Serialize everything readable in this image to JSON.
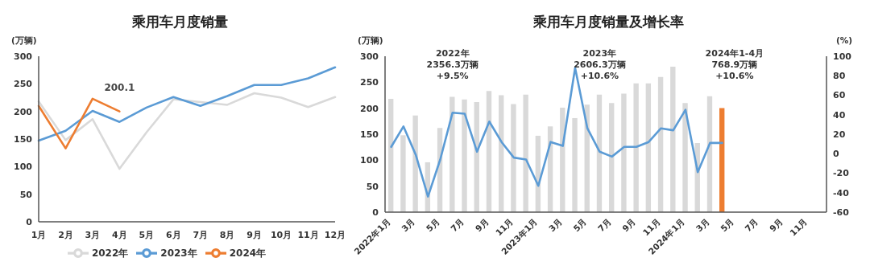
{
  "chart_data": [
    {
      "type": "line",
      "title": "乘用车月度销量",
      "ylabel": "(万辆)",
      "categories": [
        "1月",
        "2月",
        "3月",
        "4月",
        "5月",
        "6月",
        "7月",
        "8月",
        "9月",
        "10月",
        "11月",
        "12月"
      ],
      "series": [
        {
          "name": "2022年",
          "color": "#d9d9d9",
          "values": [
            218,
            148,
            186,
            96,
            162,
            222,
            217,
            212,
            233,
            225,
            208,
            226
          ]
        },
        {
          "name": "2023年",
          "color": "#5b9bd5",
          "values": [
            147,
            165,
            201,
            181,
            207,
            226,
            210,
            228,
            248,
            248,
            260,
            280
          ]
        },
        {
          "name": "2024年",
          "color": "#ed7d31",
          "values": [
            210,
            133,
            223,
            200.1,
            null,
            null,
            null,
            null,
            null,
            null,
            null,
            null
          ]
        }
      ],
      "ylim": [
        0,
        300
      ],
      "yticks": [
        0,
        50,
        100,
        150,
        200,
        250,
        300
      ],
      "legend": "bottom",
      "annotations": [
        {
          "text": "200.1",
          "x": "4月",
          "y": 200.1
        }
      ]
    },
    {
      "type": "bar",
      "title": "乘用车月度销量及增长率",
      "ylabel": "(万辆)",
      "y2label": "(%)",
      "categories": [
        "2022年1月",
        null,
        "3月",
        null,
        "5月",
        null,
        "7月",
        null,
        "9月",
        null,
        "11月",
        null,
        "2023年1月",
        null,
        "3月",
        null,
        "5月",
        null,
        "7月",
        null,
        "9月",
        null,
        "11月",
        null,
        "2024年1月",
        null,
        "3月",
        null,
        "5月",
        null,
        "7月",
        null,
        "9月",
        null,
        "11月",
        null
      ],
      "series": [
        {
          "colors": [
            "#d9d9d9",
            "#d9d9d9",
            "#d9d9d9",
            "#d9d9d9",
            "#d9d9d9",
            "#d9d9d9",
            "#d9d9d9",
            "#d9d9d9",
            "#d9d9d9",
            "#d9d9d9",
            "#d9d9d9",
            "#d9d9d9",
            "#d9d9d9",
            "#d9d9d9",
            "#d9d9d9",
            "#d9d9d9",
            "#d9d9d9",
            "#d9d9d9",
            "#d9d9d9",
            "#d9d9d9",
            "#d9d9d9",
            "#d9d9d9",
            "#d9d9d9",
            "#d9d9d9",
            "#d9d9d9",
            "#d9d9d9",
            "#d9d9d9",
            "#ed7d31",
            "#d9d9d9",
            "#d9d9d9",
            "#d9d9d9",
            "#d9d9d9",
            "#d9d9d9",
            "#d9d9d9",
            "#d9d9d9",
            "#d9d9d9"
          ],
          "values": [
            218,
            148,
            186,
            96,
            162,
            222,
            217,
            212,
            233,
            225,
            208,
            226,
            147,
            165,
            201,
            181,
            207,
            226,
            210,
            228,
            248,
            248,
            260,
            280,
            210,
            133,
            223,
            200.1,
            null,
            null,
            null,
            null,
            null,
            null,
            null,
            null
          ]
        },
        {
          "type": "line",
          "axis": "y2",
          "color": "#5b9bd5",
          "values": [
            7,
            28,
            -1,
            -44,
            -6,
            42,
            41,
            2,
            33,
            12,
            -4,
            -6,
            -33,
            12,
            8,
            88,
            26,
            2,
            -3,
            7,
            7,
            12,
            26,
            24,
            45,
            -19,
            11,
            11,
            null,
            null,
            null,
            null,
            null,
            null,
            null,
            null
          ]
        }
      ],
      "ylim": [
        0,
        300
      ],
      "yticks": [
        0,
        50,
        100,
        150,
        200,
        250,
        300
      ],
      "y2lim": [
        -60,
        100
      ],
      "y2ticks": [
        -60,
        -40,
        -20,
        0,
        20,
        40,
        60,
        80,
        100
      ],
      "annotations": [
        "2022年\n2356.3万辆\n+9.5%",
        "2023年\n2606.3万辆\n+10.6%",
        "2024年1-4月\n768.9万辆\n+10.6%"
      ]
    }
  ]
}
